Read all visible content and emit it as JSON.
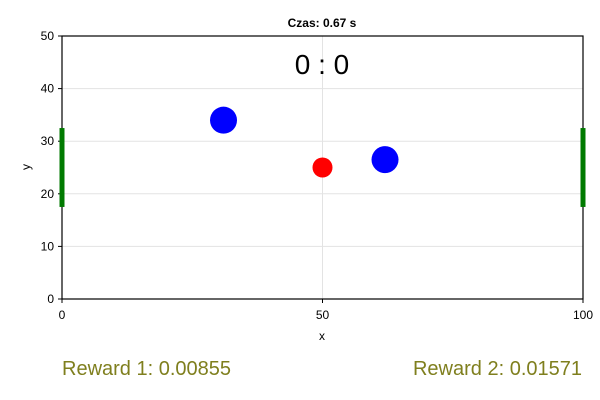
{
  "plot": {
    "title": "Czas: 0.67 s",
    "score": "0 : 0",
    "xlabel": "x",
    "ylabel": "y",
    "xlim": [
      0,
      100
    ],
    "ylim": [
      0,
      50
    ],
    "xticks": [
      0,
      50,
      100
    ],
    "yticks": [
      0,
      10,
      20,
      30,
      40,
      50
    ],
    "grid": true
  },
  "game": {
    "ball": {
      "x": 50,
      "y": 25,
      "color": "#ff0000"
    },
    "players": [
      {
        "x": 31,
        "y": 34,
        "color": "#0000ff"
      },
      {
        "x": 62,
        "y": 26.5,
        "color": "#0000ff"
      }
    ],
    "goals": [
      {
        "x": 0,
        "y_from": 17.5,
        "y_to": 32.5,
        "color": "#007a00"
      },
      {
        "x": 100,
        "y_from": 17.5,
        "y_to": 32.5,
        "color": "#007a00"
      }
    ]
  },
  "rewards": {
    "player1": "Reward 1: 0.00855",
    "player2": "Reward 2: 0.01571"
  }
}
